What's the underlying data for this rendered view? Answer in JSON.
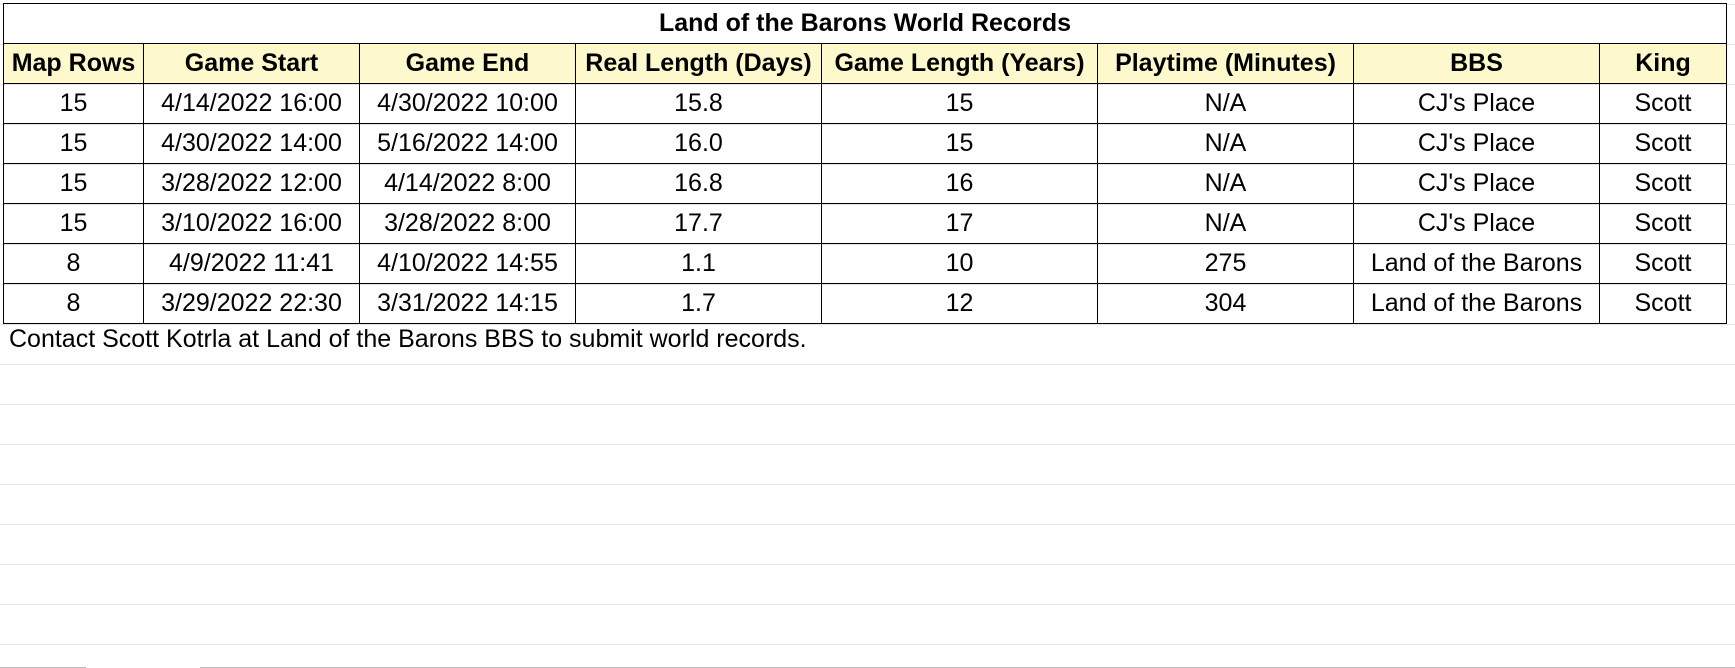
{
  "sheet": {
    "title": "Land of the Barons World Records",
    "columns": [
      "Map Rows",
      "Game Start",
      "Game End",
      "Real Length (Days)",
      "Game Length (Years)",
      "Playtime (Minutes)",
      "BBS",
      "King"
    ],
    "rows": [
      [
        "15",
        "4/14/2022 16:00",
        "4/30/2022 10:00",
        "15.8",
        "15",
        "N/A",
        "CJ's Place",
        "Scott"
      ],
      [
        "15",
        "4/30/2022 14:00",
        "5/16/2022 14:00",
        "16.0",
        "15",
        "N/A",
        "CJ's Place",
        "Scott"
      ],
      [
        "15",
        "3/28/2022 12:00",
        "4/14/2022 8:00",
        "16.8",
        "16",
        "N/A",
        "CJ's Place",
        "Scott"
      ],
      [
        "15",
        "3/10/2022 16:00",
        "3/28/2022 8:00",
        "17.7",
        "17",
        "N/A",
        "CJ's Place",
        "Scott"
      ],
      [
        "8",
        "4/9/2022 11:41",
        "4/10/2022 14:55",
        "1.1",
        "10",
        "275",
        "Land of the Barons",
        "Scott"
      ],
      [
        "8",
        "3/29/2022 22:30",
        "3/31/2022 14:15",
        "1.7",
        "12",
        "304",
        "Land of the Barons",
        "Scott"
      ]
    ],
    "note": "Contact Scott Kotrla at Land of the Barons BBS to submit world records."
  },
  "colors": {
    "header_fill": "#fdf9cc",
    "border": "#000000"
  }
}
